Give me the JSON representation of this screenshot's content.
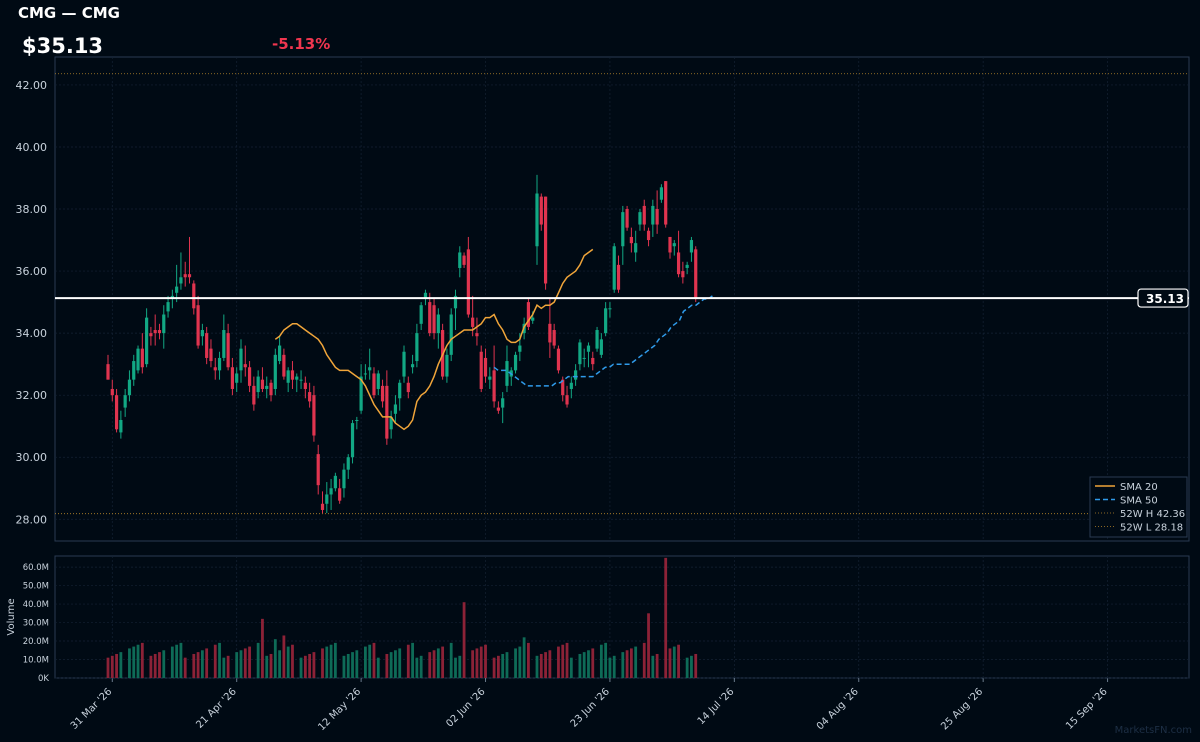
{
  "header": {
    "title": "CMG — CMG",
    "price": "$35.13",
    "change": "-5.13%"
  },
  "watermark": "MarketsFN.com",
  "colors": {
    "up": "#12a884",
    "down": "#e0344f",
    "sma20": "#f0a53a",
    "sma50": "#2f9bea",
    "bg": "#000a14",
    "grid": "#142233",
    "axis": "#c8d2dc",
    "last": "#ffffff"
  },
  "chart_data": [
    {
      "type": "candlestick",
      "title": "CMG — CMG",
      "ylim": [
        27.3,
        42.9
      ],
      "yticks": [
        "28.00",
        "30.00",
        "32.00",
        "34.00",
        "36.00",
        "38.00",
        "40.00",
        "42.00"
      ],
      "xticks": [
        "31 Mar '26",
        "21 Apr '26",
        "12 May '26",
        "02 Jun '26",
        "23 Jun '26",
        "14 Jul '26",
        "04 Aug '26",
        "25 Aug '26",
        "15 Sep '26"
      ],
      "last_price_label": "35.13",
      "legend": {
        "position": "bottom-right",
        "entries": [
          {
            "label": "SMA 20",
            "color": "#f0a53a",
            "style": "solid"
          },
          {
            "label": "SMA 50",
            "color": "#2f9bea",
            "style": "dashed"
          },
          {
            "label": "52W H 42.36",
            "color": "#b8862a",
            "style": "dotted"
          },
          {
            "label": "52W L 28.18",
            "color": "#b8862a",
            "style": "dotted"
          }
        ]
      },
      "reference_lines": {
        "high_52w": 42.36,
        "low_52w": 28.18,
        "last": 35.13
      },
      "ohlc": [
        [
          33.0,
          33.3,
          32.5,
          32.5
        ],
        [
          32.2,
          32.5,
          31.8,
          32.0
        ],
        [
          32.0,
          32.2,
          30.8,
          30.9
        ],
        [
          30.8,
          31.5,
          30.6,
          31.2
        ],
        [
          31.6,
          32.2,
          31.3,
          32.0
        ],
        [
          32.0,
          32.8,
          31.8,
          32.5
        ],
        [
          32.5,
          33.3,
          32.3,
          33.1
        ],
        [
          32.8,
          33.6,
          32.7,
          33.5
        ],
        [
          33.5,
          34.0,
          32.7,
          32.9
        ],
        [
          33.0,
          34.8,
          32.9,
          34.5
        ],
        [
          34.0,
          34.2,
          33.6,
          33.9
        ],
        [
          34.1,
          34.6,
          33.6,
          34.0
        ],
        [
          34.1,
          34.3,
          33.8,
          34.0
        ],
        [
          34.0,
          34.9,
          33.5,
          34.6
        ],
        [
          34.7,
          35.2,
          34.5,
          35.0
        ],
        [
          35.1,
          35.4,
          34.8,
          35.2
        ],
        [
          35.3,
          36.2,
          35.0,
          35.5
        ],
        [
          35.6,
          36.6,
          35.4,
          35.8
        ],
        [
          35.9,
          36.3,
          35.5,
          35.8
        ],
        [
          35.9,
          37.1,
          35.6,
          35.8
        ],
        [
          35.6,
          35.7,
          34.6,
          34.8
        ],
        [
          34.9,
          35.2,
          33.5,
          33.6
        ],
        [
          33.9,
          34.3,
          33.6,
          34.1
        ],
        [
          34.0,
          34.2,
          33.0,
          33.2
        ],
        [
          33.5,
          33.8,
          32.9,
          33.1
        ],
        [
          32.9,
          33.2,
          32.5,
          32.8
        ],
        [
          32.8,
          33.4,
          32.5,
          33.2
        ],
        [
          33.2,
          34.6,
          33.1,
          34.1
        ],
        [
          34.0,
          34.3,
          32.8,
          32.9
        ],
        [
          32.9,
          33.2,
          32.0,
          32.2
        ],
        [
          32.4,
          32.9,
          32.1,
          32.7
        ],
        [
          32.8,
          33.8,
          32.4,
          33.5
        ],
        [
          33.0,
          33.6,
          32.6,
          32.9
        ],
        [
          32.9,
          33.1,
          32.1,
          32.3
        ],
        [
          32.3,
          32.6,
          31.5,
          31.7
        ],
        [
          32.1,
          32.8,
          31.9,
          32.6
        ],
        [
          32.5,
          32.9,
          32.1,
          32.2
        ],
        [
          32.2,
          32.6,
          31.9,
          32.3
        ],
        [
          32.4,
          32.5,
          31.8,
          32.0
        ],
        [
          32.2,
          33.5,
          32.0,
          33.3
        ],
        [
          33.1,
          33.9,
          33.0,
          33.6
        ],
        [
          33.3,
          33.5,
          32.5,
          32.6
        ],
        [
          32.4,
          32.9,
          32.1,
          32.8
        ],
        [
          32.8,
          33.1,
          32.2,
          32.5
        ],
        [
          32.5,
          32.7,
          32.1,
          32.6
        ],
        [
          32.5,
          32.8,
          32.2,
          32.5
        ],
        [
          32.4,
          32.6,
          31.9,
          32.2
        ],
        [
          32.1,
          32.4,
          31.6,
          31.8
        ],
        [
          32.0,
          32.3,
          30.5,
          30.7
        ],
        [
          30.1,
          30.4,
          28.8,
          29.1
        ],
        [
          28.5,
          28.9,
          28.2,
          28.3
        ],
        [
          28.5,
          29.2,
          28.2,
          28.8
        ],
        [
          28.8,
          29.3,
          28.3,
          29.0
        ],
        [
          29.0,
          29.5,
          28.9,
          29.4
        ],
        [
          29.0,
          29.3,
          28.5,
          28.6
        ],
        [
          29.0,
          29.8,
          28.7,
          29.6
        ],
        [
          29.6,
          30.1,
          29.3,
          30.0
        ],
        [
          30.0,
          31.2,
          29.8,
          31.1
        ],
        [
          31.2,
          31.3,
          30.9,
          31.2
        ],
        [
          31.5,
          33.0,
          31.4,
          32.6
        ],
        [
          32.7,
          33.0,
          32.5,
          32.7
        ],
        [
          32.8,
          33.5,
          32.5,
          32.9
        ],
        [
          32.7,
          32.9,
          31.9,
          32.0
        ],
        [
          32.2,
          32.8,
          32.0,
          32.7
        ],
        [
          32.3,
          32.5,
          31.6,
          31.8
        ],
        [
          32.3,
          32.8,
          30.4,
          30.6
        ],
        [
          30.9,
          31.5,
          30.6,
          31.3
        ],
        [
          31.4,
          32.0,
          31.1,
          31.7
        ],
        [
          31.9,
          32.5,
          31.5,
          32.4
        ],
        [
          32.6,
          33.6,
          32.4,
          33.4
        ],
        [
          32.4,
          32.6,
          31.9,
          32.1
        ],
        [
          32.9,
          33.3,
          32.7,
          33.0
        ],
        [
          33.1,
          34.3,
          32.9,
          34.0
        ],
        [
          34.3,
          35.0,
          34.1,
          34.9
        ],
        [
          35.1,
          35.4,
          34.9,
          35.3
        ],
        [
          35.0,
          35.3,
          33.9,
          34.0
        ],
        [
          34.9,
          35.1,
          33.8,
          34.0
        ],
        [
          34.0,
          34.8,
          33.5,
          34.6
        ],
        [
          34.1,
          34.3,
          32.5,
          32.6
        ],
        [
          32.6,
          33.5,
          32.4,
          33.3
        ],
        [
          33.3,
          34.8,
          33.1,
          34.6
        ],
        [
          34.8,
          35.4,
          34.1,
          35.2
        ],
        [
          36.1,
          36.8,
          35.8,
          36.6
        ],
        [
          36.5,
          36.6,
          36.1,
          36.2
        ],
        [
          36.7,
          37.1,
          34.5,
          34.6
        ],
        [
          34.5,
          35.2,
          33.9,
          34.2
        ],
        [
          34.0,
          34.5,
          33.6,
          33.9
        ],
        [
          33.4,
          33.6,
          32.1,
          32.2
        ],
        [
          33.2,
          33.5,
          32.4,
          32.6
        ],
        [
          32.5,
          32.9,
          32.2,
          32.6
        ],
        [
          32.8,
          33.6,
          31.6,
          31.8
        ],
        [
          31.6,
          31.8,
          31.4,
          31.5
        ],
        [
          31.6,
          32.1,
          31.1,
          31.9
        ],
        [
          32.3,
          33.6,
          32.1,
          33.1
        ],
        [
          32.6,
          32.9,
          32.3,
          32.8
        ],
        [
          32.8,
          33.4,
          32.7,
          33.3
        ],
        [
          33.4,
          34.0,
          33.1,
          33.6
        ],
        [
          34.0,
          34.5,
          33.8,
          34.3
        ],
        [
          35.0,
          35.1,
          34.1,
          34.2
        ],
        [
          34.4,
          34.7,
          34.3,
          34.5
        ],
        [
          36.8,
          39.1,
          36.2,
          38.5
        ],
        [
          38.4,
          38.5,
          37.3,
          37.5
        ],
        [
          38.4,
          38.4,
          35.4,
          35.6
        ],
        [
          34.3,
          35.1,
          33.2,
          33.7
        ],
        [
          34.1,
          34.3,
          33.5,
          33.6
        ],
        [
          33.5,
          33.6,
          32.7,
          32.8
        ],
        [
          32.5,
          32.6,
          31.8,
          32.0
        ],
        [
          32.0,
          32.3,
          31.6,
          31.7
        ],
        [
          32.2,
          32.6,
          31.9,
          32.4
        ],
        [
          32.5,
          33.0,
          32.3,
          32.8
        ],
        [
          33.0,
          33.8,
          32.8,
          33.7
        ],
        [
          33.2,
          33.5,
          32.9,
          33.2
        ],
        [
          33.4,
          33.7,
          32.9,
          33.6
        ],
        [
          33.2,
          33.4,
          32.8,
          33.0
        ],
        [
          33.5,
          34.2,
          33.4,
          34.1
        ],
        [
          33.3,
          34.0,
          33.2,
          33.8
        ],
        [
          34.0,
          35.0,
          33.9,
          34.8
        ],
        [
          34.8,
          35.0,
          34.5,
          34.8
        ],
        [
          35.4,
          36.9,
          35.3,
          36.8
        ],
        [
          36.2,
          36.5,
          35.3,
          35.4
        ],
        [
          36.8,
          38.1,
          36.2,
          37.9
        ],
        [
          38.0,
          38.1,
          37.3,
          37.4
        ],
        [
          37.1,
          37.4,
          36.6,
          36.9
        ],
        [
          36.6,
          37.3,
          36.3,
          36.9
        ],
        [
          37.5,
          38.0,
          37.3,
          37.9
        ],
        [
          38.1,
          38.3,
          37.3,
          37.5
        ],
        [
          37.3,
          37.4,
          36.8,
          37.0
        ],
        [
          37.5,
          38.3,
          37.1,
          38.1
        ],
        [
          38.0,
          38.6,
          37.2,
          37.5
        ],
        [
          38.3,
          38.8,
          38.2,
          38.7
        ],
        [
          38.9,
          38.9,
          37.4,
          37.5
        ],
        [
          37.1,
          37.1,
          36.4,
          36.6
        ],
        [
          36.8,
          37.0,
          36.5,
          36.9
        ],
        [
          36.6,
          37.3,
          35.8,
          35.9
        ],
        [
          36.0,
          36.3,
          35.6,
          35.8
        ],
        [
          36.1,
          36.3,
          35.9,
          36.2
        ],
        [
          36.6,
          37.1,
          36.3,
          37.0
        ],
        [
          36.7,
          36.8,
          35.0,
          35.1
        ]
      ],
      "sma20": [
        null,
        null,
        null,
        null,
        null,
        null,
        null,
        null,
        null,
        null,
        null,
        null,
        null,
        null,
        null,
        null,
        null,
        null,
        null,
        null,
        33.8,
        33.9,
        34.1,
        34.2,
        34.3,
        34.3,
        34.2,
        34.1,
        34.0,
        33.9,
        33.8,
        33.6,
        33.3,
        33.1,
        32.9,
        32.8,
        32.8,
        32.8,
        32.7,
        32.6,
        32.5,
        32.3,
        32.0,
        31.7,
        31.5,
        31.3,
        31.3,
        31.3,
        31.1,
        31.0,
        30.9,
        31.0,
        31.2,
        31.8,
        32.0,
        32.1,
        32.3,
        32.6,
        33.0,
        33.3,
        33.6,
        33.8,
        33.9,
        34.0,
        34.1,
        34.1,
        34.1,
        34.2,
        34.3,
        34.5,
        34.5,
        34.6,
        34.3,
        34.1,
        33.8,
        33.7,
        33.7,
        33.8,
        34.2,
        34.4,
        34.6,
        34.9,
        34.8,
        34.9,
        34.9,
        35.0,
        35.3,
        35.6,
        35.8,
        35.9,
        36.0,
        36.2,
        36.5,
        36.6,
        36.7
      ],
      "sma20_start": 20,
      "sma50": [
        32.9,
        32.8,
        32.8,
        32.8,
        32.7,
        32.6,
        32.5,
        32.4,
        32.3,
        32.3,
        32.3,
        32.3,
        32.3,
        32.3,
        32.3,
        32.4,
        32.4,
        32.5,
        32.6,
        32.6,
        32.6,
        32.6,
        32.6,
        32.6,
        32.6,
        32.7,
        32.8,
        32.9,
        32.9,
        33.0,
        33.0,
        33.0,
        33.0,
        33.0,
        33.1,
        33.2,
        33.3,
        33.4,
        33.5,
        33.6,
        33.8,
        33.9,
        34.0,
        34.2,
        34.3,
        34.4,
        34.7,
        34.8,
        34.9,
        34.9,
        35.0,
        35.1,
        35.1,
        35.2
      ],
      "sma50_start": 91
    },
    {
      "type": "bar",
      "ylabel": "Volume",
      "ylim": [
        0,
        66
      ],
      "yticks": [
        "0K",
        "10.0M",
        "20.0M",
        "30.0M",
        "40.0M",
        "50.0M",
        "60.0M"
      ],
      "units": "millions"
    }
  ]
}
